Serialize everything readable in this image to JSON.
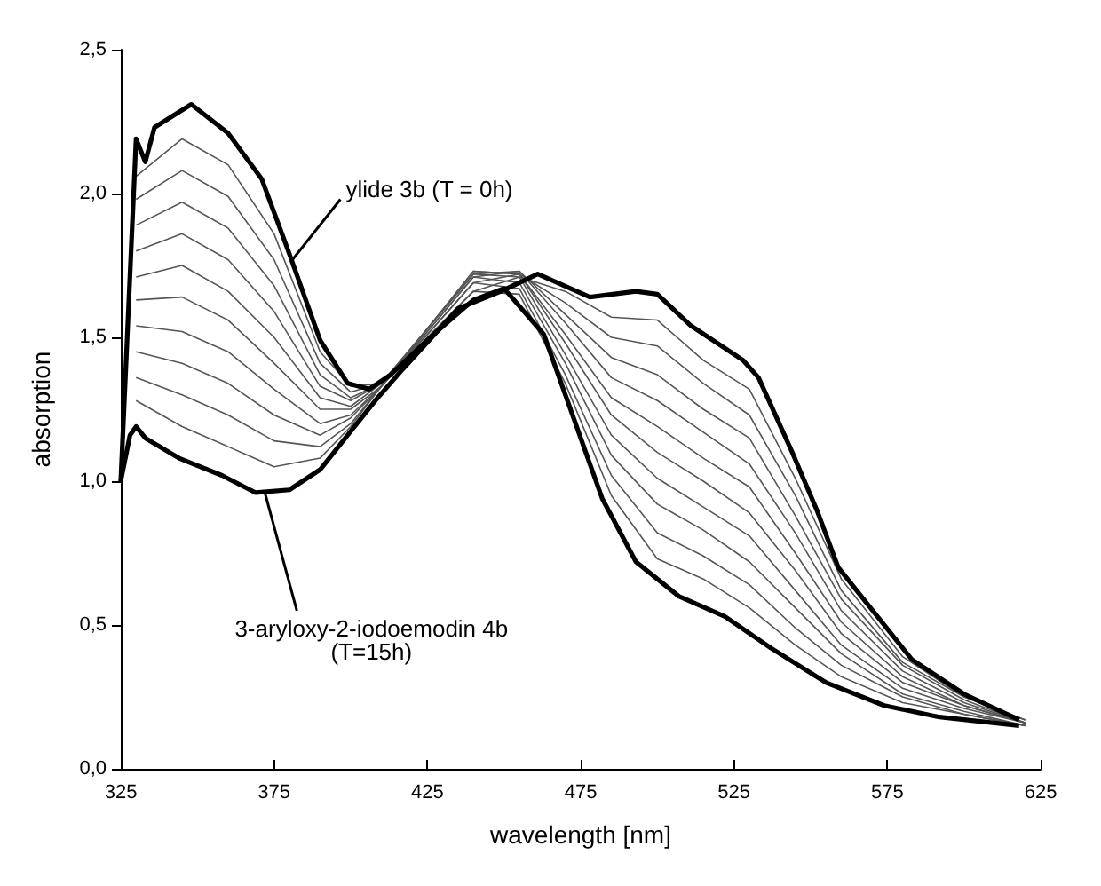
{
  "chart_data": {
    "type": "line",
    "xlabel": "wavelength [nm]",
    "ylabel": "absorption",
    "xlim": [
      325,
      625
    ],
    "xticks": [
      325,
      375,
      425,
      475,
      525,
      575,
      625
    ],
    "ylim": [
      0,
      2.5
    ],
    "yticks": [
      {
        "value": 0,
        "label": "0,0"
      },
      {
        "value": 0.5,
        "label": "0,5"
      },
      {
        "value": 1,
        "label": "1,0"
      },
      {
        "value": 1.5,
        "label": "1,5"
      },
      {
        "value": 2,
        "label": "2,0"
      },
      {
        "value": 2.5,
        "label": "2,5"
      }
    ],
    "grid": false,
    "marker": "none",
    "line_style": "solid",
    "x": [
      330,
      345,
      360,
      375,
      390,
      400,
      410,
      425,
      440,
      455,
      470,
      485,
      500,
      515,
      530,
      545,
      560,
      580,
      600,
      620
    ],
    "series": [
      {
        "color": "#000000",
        "x": [
          325,
          330,
          333,
          336,
          348,
          360,
          371,
          380,
          390,
          399,
          406,
          413,
          427,
          440,
          450,
          463,
          472,
          482,
          493,
          507,
          522,
          537,
          555,
          574,
          592,
          618
        ],
        "values": [
          1.0,
          2.19,
          2.11,
          2.23,
          2.31,
          2.21,
          2.05,
          1.79,
          1.49,
          1.34,
          1.32,
          1.37,
          1.51,
          1.63,
          1.67,
          1.51,
          1.24,
          0.94,
          0.72,
          0.6,
          0.53,
          0.42,
          0.3,
          0.22,
          0.18,
          0.15
        ]
      },
      {
        "color": "#555555",
        "values": [
          2.06,
          2.19,
          2.1,
          1.86,
          1.45,
          1.33,
          1.34,
          1.5,
          1.66,
          1.65,
          1.34,
          0.95,
          0.73,
          0.66,
          0.56,
          0.43,
          0.32,
          0.23,
          0.19,
          0.15
        ]
      },
      {
        "color": "#555555",
        "values": [
          1.98,
          2.08,
          1.99,
          1.77,
          1.41,
          1.31,
          1.34,
          1.51,
          1.69,
          1.67,
          1.37,
          1.02,
          0.82,
          0.74,
          0.64,
          0.49,
          0.36,
          0.25,
          0.19,
          0.15
        ]
      },
      {
        "color": "#555555",
        "values": [
          1.89,
          1.97,
          1.88,
          1.68,
          1.37,
          1.29,
          1.34,
          1.52,
          1.71,
          1.69,
          1.41,
          1.09,
          0.92,
          0.83,
          0.72,
          0.56,
          0.4,
          0.26,
          0.2,
          0.15
        ]
      },
      {
        "color": "#555555",
        "values": [
          1.8,
          1.86,
          1.77,
          1.59,
          1.33,
          1.28,
          1.34,
          1.53,
          1.72,
          1.71,
          1.44,
          1.16,
          1.01,
          0.91,
          0.81,
          0.62,
          0.43,
          0.28,
          0.21,
          0.16
        ]
      },
      {
        "color": "#555555",
        "values": [
          1.71,
          1.75,
          1.66,
          1.5,
          1.29,
          1.26,
          1.34,
          1.53,
          1.73,
          1.72,
          1.48,
          1.23,
          1.1,
          1.0,
          0.89,
          0.69,
          0.47,
          0.3,
          0.22,
          0.16
        ]
      },
      {
        "color": "#555555",
        "values": [
          1.63,
          1.64,
          1.56,
          1.41,
          1.25,
          1.25,
          1.33,
          1.53,
          1.73,
          1.72,
          1.51,
          1.29,
          1.19,
          1.08,
          0.98,
          0.75,
          0.51,
          0.32,
          0.22,
          0.16
        ]
      },
      {
        "color": "#555555",
        "values": [
          1.54,
          1.52,
          1.45,
          1.32,
          1.2,
          1.23,
          1.33,
          1.53,
          1.72,
          1.73,
          1.55,
          1.36,
          1.28,
          1.17,
          1.06,
          0.82,
          0.55,
          0.34,
          0.23,
          0.16
        ]
      },
      {
        "color": "#555555",
        "values": [
          1.45,
          1.41,
          1.34,
          1.23,
          1.16,
          1.22,
          1.33,
          1.52,
          1.71,
          1.73,
          1.58,
          1.43,
          1.37,
          1.25,
          1.15,
          0.88,
          0.59,
          0.36,
          0.24,
          0.16
        ]
      },
      {
        "color": "#555555",
        "values": [
          1.36,
          1.3,
          1.23,
          1.14,
          1.12,
          1.2,
          1.33,
          1.51,
          1.69,
          1.72,
          1.62,
          1.5,
          1.47,
          1.34,
          1.23,
          0.95,
          0.62,
          0.37,
          0.25,
          0.17
        ]
      },
      {
        "color": "#555555",
        "values": [
          1.28,
          1.19,
          1.12,
          1.05,
          1.08,
          1.19,
          1.33,
          1.5,
          1.66,
          1.71,
          1.66,
          1.57,
          1.56,
          1.42,
          1.32,
          1.01,
          0.66,
          0.39,
          0.25,
          0.17
        ]
      },
      {
        "color": "#000000",
        "x": [
          325,
          328,
          330,
          333,
          344,
          358,
          369,
          380,
          390,
          399,
          408,
          417,
          435,
          449,
          461,
          478,
          493,
          500,
          511,
          528,
          533,
          544,
          552,
          559,
          568,
          583,
          600,
          618
        ],
        "values": [
          1.0,
          1.16,
          1.19,
          1.15,
          1.08,
          1.02,
          0.96,
          0.97,
          1.04,
          1.16,
          1.28,
          1.39,
          1.6,
          1.66,
          1.72,
          1.64,
          1.66,
          1.65,
          1.54,
          1.42,
          1.36,
          1.1,
          0.9,
          0.7,
          0.58,
          0.38,
          0.26,
          0.17
        ]
      }
    ],
    "annotations": [
      {
        "text": "ylide 3b (T = 0h)",
        "x": 381,
        "y": 1.77
      },
      {
        "text": "3-aryloxy-2-iodoemodin 4b\n(T=15h)",
        "x": 372,
        "y": 0.96
      }
    ]
  }
}
